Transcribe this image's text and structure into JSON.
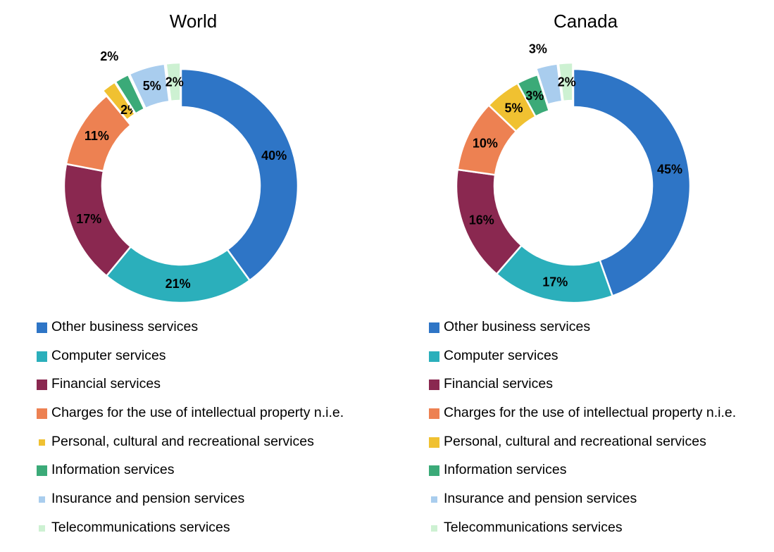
{
  "charts": [
    {
      "title": "World",
      "chart_data": {
        "type": "pie",
        "title": "World",
        "categories": [
          "Other business services",
          "Computer services",
          "Financial services",
          "Charges for the use of intellectual property n.i.e.",
          "Personal, cultural and recreational services",
          "Information services",
          "Insurance and pension services",
          "Telecommunications services"
        ],
        "values": [
          40,
          21,
          17,
          11,
          2,
          2,
          5,
          2
        ],
        "labels": [
          "40%",
          "21%",
          "17%",
          "11%",
          "2%",
          "2%",
          "5%",
          "2%"
        ],
        "colors": [
          "#2E75C6",
          "#2BAFBB",
          "#8A2850",
          "#ED8152",
          "#F0C131",
          "#3BAA78",
          "#A9CDEE",
          "#CDF1D2"
        ],
        "exploded": [
          false,
          false,
          false,
          false,
          true,
          true,
          true,
          true
        ],
        "legend_position": "bottom"
      }
    },
    {
      "title": "Canada",
      "chart_data": {
        "type": "pie",
        "title": "Canada",
        "categories": [
          "Other business services",
          "Computer services",
          "Financial services",
          "Charges for the use of intellectual property n.i.e.",
          "Personal, cultural and recreational services",
          "Information services",
          "Insurance and pension services",
          "Telecommunications services"
        ],
        "values": [
          45,
          17,
          16,
          10,
          5,
          3,
          3,
          2
        ],
        "labels": [
          "45%",
          "17%",
          "16%",
          "10%",
          "5%",
          "3%",
          "3%",
          "2%"
        ],
        "colors": [
          "#2E75C6",
          "#2BAFBB",
          "#8A2850",
          "#ED8152",
          "#F0C131",
          "#3BAA78",
          "#A9CDEE",
          "#CDF1D2"
        ],
        "exploded": [
          false,
          false,
          false,
          false,
          false,
          false,
          true,
          true
        ],
        "legend_position": "bottom"
      }
    }
  ],
  "legend_world": [
    {
      "label": "Other business services",
      "color": "#2E75C6",
      "swatch": "big"
    },
    {
      "label": "Computer services",
      "color": "#2BAFBB",
      "swatch": "big"
    },
    {
      "label": "Financial services",
      "color": "#8A2850",
      "swatch": "big"
    },
    {
      "label": "Charges for the use of intellectual property n.i.e.",
      "color": "#ED8152",
      "swatch": "big"
    },
    {
      "label": "Personal, cultural and recreational services",
      "color": "#F0C131",
      "swatch": "small"
    },
    {
      "label": "Information services",
      "color": "#3BAA78",
      "swatch": "big"
    },
    {
      "label": "Insurance and pension services",
      "color": "#A9CDEE",
      "swatch": "small"
    },
    {
      "label": "Telecommunications services",
      "color": "#CDF1D2",
      "swatch": "small"
    }
  ],
  "legend_canada": [
    {
      "label": "Other business services",
      "color": "#2E75C6",
      "swatch": "big"
    },
    {
      "label": "Computer services",
      "color": "#2BAFBB",
      "swatch": "big"
    },
    {
      "label": "Financial services",
      "color": "#8A2850",
      "swatch": "big"
    },
    {
      "label": "Charges for the use of intellectual property n.i.e.",
      "color": "#ED8152",
      "swatch": "big"
    },
    {
      "label": "Personal, cultural and recreational services",
      "color": "#F0C131",
      "swatch": "big"
    },
    {
      "label": "Information services",
      "color": "#3BAA78",
      "swatch": "big"
    },
    {
      "label": "Insurance and pension services",
      "color": "#A9CDEE",
      "swatch": "small"
    },
    {
      "label": "Telecommunications services",
      "color": "#CDF1D2",
      "swatch": "small"
    }
  ]
}
